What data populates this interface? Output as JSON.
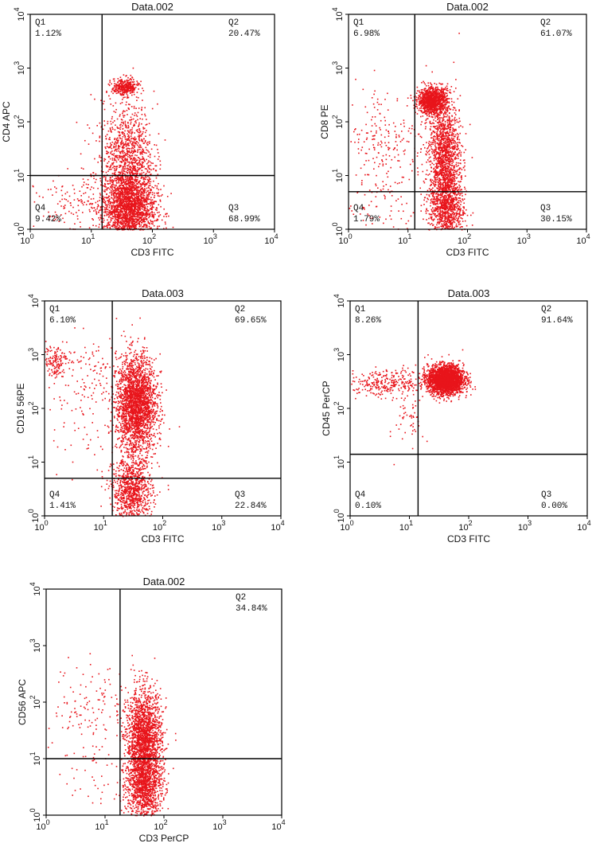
{
  "chart_data": [
    {
      "type": "scatter",
      "title": "Data.002",
      "xlabel": "CD3 FITC",
      "ylabel": "CD4 APC",
      "xscale": "log",
      "yscale": "log",
      "xlim": [
        1,
        10000
      ],
      "ylim": [
        1,
        10000
      ],
      "ticks": [
        {
          "base": "10",
          "exp": "0"
        },
        {
          "base": "10",
          "exp": "1"
        },
        {
          "base": "10",
          "exp": "2"
        },
        {
          "base": "10",
          "exp": "3"
        },
        {
          "base": "10",
          "exp": "4"
        }
      ],
      "gate": {
        "x": 15,
        "y": 10
      },
      "quadrants": [
        {
          "name": "Q1",
          "value": "1.12%",
          "pos": "top-left"
        },
        {
          "name": "Q2",
          "value": "20.47%",
          "pos": "top-right"
        },
        {
          "name": "Q3",
          "value": "68.99%",
          "pos": "bottom-right"
        },
        {
          "name": "Q4",
          "value": "9.42%",
          "pos": "bottom-left"
        }
      ],
      "clusters": [
        {
          "x": 40,
          "y": 2.5,
          "sx": 0.22,
          "sy": 0.35,
          "n": 2200
        },
        {
          "x": 40,
          "y": 25,
          "sx": 0.2,
          "sy": 0.45,
          "n": 900
        },
        {
          "x": 35,
          "y": 450,
          "sx": 0.11,
          "sy": 0.08,
          "n": 350
        },
        {
          "x": 6,
          "y": 2.5,
          "sx": 0.35,
          "sy": 0.3,
          "n": 160
        },
        {
          "x": 20,
          "y": 30,
          "sx": 0.35,
          "sy": 0.6,
          "n": 60
        }
      ],
      "color": "#e8141b"
    },
    {
      "type": "scatter",
      "title": "Data.002",
      "xlabel": "CD3 FITC",
      "ylabel": "CD8 PE",
      "xscale": "log",
      "yscale": "log",
      "xlim": [
        1,
        10000
      ],
      "ylim": [
        1,
        10000
      ],
      "ticks": [
        {
          "base": "10",
          "exp": "0"
        },
        {
          "base": "10",
          "exp": "1"
        },
        {
          "base": "10",
          "exp": "2"
        },
        {
          "base": "10",
          "exp": "3"
        },
        {
          "base": "10",
          "exp": "4"
        }
      ],
      "gate": {
        "x": 13,
        "y": 5
      },
      "quadrants": [
        {
          "name": "Q1",
          "value": "6.98%",
          "pos": "top-left"
        },
        {
          "name": "Q2",
          "value": "61.07%",
          "pos": "top-right"
        },
        {
          "name": "Q3",
          "value": "30.15%",
          "pos": "bottom-right"
        },
        {
          "name": "Q4",
          "value": "1.79%",
          "pos": "bottom-left"
        }
      ],
      "clusters": [
        {
          "x": 25,
          "y": 250,
          "sx": 0.12,
          "sy": 0.12,
          "n": 1100
        },
        {
          "x": 40,
          "y": 20,
          "sx": 0.13,
          "sy": 0.55,
          "n": 1500
        },
        {
          "x": 45,
          "y": 2.5,
          "sx": 0.15,
          "sy": 0.3,
          "n": 700
        },
        {
          "x": 4,
          "y": 40,
          "sx": 0.35,
          "sy": 0.55,
          "n": 230
        },
        {
          "x": 4,
          "y": 2.5,
          "sx": 0.35,
          "sy": 0.25,
          "n": 60
        }
      ],
      "color": "#e8141b"
    },
    {
      "type": "scatter",
      "title": "Data.003",
      "xlabel": "CD3 FITC",
      "ylabel": "CD16 56PE",
      "xscale": "log",
      "yscale": "log",
      "xlim": [
        1,
        10000
      ],
      "ylim": [
        1,
        10000
      ],
      "ticks": [
        {
          "base": "10",
          "exp": "0"
        },
        {
          "base": "10",
          "exp": "1"
        },
        {
          "base": "10",
          "exp": "2"
        },
        {
          "base": "10",
          "exp": "3"
        },
        {
          "base": "10",
          "exp": "4"
        }
      ],
      "gate": {
        "x": 14,
        "y": 5
      },
      "quadrants": [
        {
          "name": "Q1",
          "value": "6.10%",
          "pos": "top-left"
        },
        {
          "name": "Q2",
          "value": "69.65%",
          "pos": "top-right"
        },
        {
          "name": "Q3",
          "value": "22.84%",
          "pos": "bottom-right"
        },
        {
          "name": "Q4",
          "value": "1.41%",
          "pos": "bottom-left"
        }
      ],
      "clusters": [
        {
          "x": 35,
          "y": 120,
          "sx": 0.17,
          "sy": 0.45,
          "n": 2400
        },
        {
          "x": 30,
          "y": 3,
          "sx": 0.17,
          "sy": 0.3,
          "n": 900
        },
        {
          "x": 1.4,
          "y": 800,
          "sx": 0.12,
          "sy": 0.15,
          "n": 150
        },
        {
          "x": 5,
          "y": 400,
          "sx": 0.3,
          "sy": 0.4,
          "n": 120
        },
        {
          "x": 6,
          "y": 30,
          "sx": 0.4,
          "sy": 0.6,
          "n": 40
        }
      ],
      "color": "#e8141b"
    },
    {
      "type": "scatter",
      "title": "Data.003",
      "xlabel": "CD3 FITC",
      "ylabel": "CD45 PerCP",
      "xscale": "log",
      "yscale": "log",
      "xlim": [
        1,
        10000
      ],
      "ylim": [
        1,
        10000
      ],
      "ticks": [
        {
          "base": "10",
          "exp": "0"
        },
        {
          "base": "10",
          "exp": "1"
        },
        {
          "base": "10",
          "exp": "2"
        },
        {
          "base": "10",
          "exp": "3"
        },
        {
          "base": "10",
          "exp": "4"
        }
      ],
      "gate": {
        "x": 14,
        "y": 14
      },
      "quadrants": [
        {
          "name": "Q1",
          "value": "8.26%",
          "pos": "top-left"
        },
        {
          "name": "Q2",
          "value": "91.64%",
          "pos": "top-right"
        },
        {
          "name": "Q3",
          "value": "0.00%",
          "pos": "bottom-right"
        },
        {
          "name": "Q4",
          "value": "0.10%",
          "pos": "bottom-left"
        }
      ],
      "clusters": [
        {
          "x": 40,
          "y": 350,
          "sx": 0.15,
          "sy": 0.13,
          "n": 2600
        },
        {
          "x": 4,
          "y": 300,
          "sx": 0.35,
          "sy": 0.12,
          "n": 300
        },
        {
          "x": 10,
          "y": 80,
          "sx": 0.12,
          "sy": 0.35,
          "n": 60
        }
      ],
      "color": "#e8141b"
    },
    {
      "type": "scatter",
      "title": "Data.002",
      "xlabel": "CD3 PerCP",
      "ylabel": "CD56 APC",
      "xscale": "log",
      "yscale": "log",
      "xlim": [
        1,
        10000
      ],
      "ylim": [
        1,
        10000
      ],
      "ticks": [
        {
          "base": "10",
          "exp": "0"
        },
        {
          "base": "10",
          "exp": "1"
        },
        {
          "base": "10",
          "exp": "2"
        },
        {
          "base": "10",
          "exp": "3"
        },
        {
          "base": "10",
          "exp": "4"
        }
      ],
      "gate": {
        "x": 18,
        "y": 10
      },
      "quadrants": [
        {
          "name": "Q2",
          "value": "34.84%",
          "pos": "top-right"
        }
      ],
      "clusters": [
        {
          "x": 45,
          "y": 20,
          "sx": 0.15,
          "sy": 0.45,
          "n": 2000
        },
        {
          "x": 45,
          "y": 3,
          "sx": 0.15,
          "sy": 0.3,
          "n": 900
        },
        {
          "x": 6,
          "y": 100,
          "sx": 0.35,
          "sy": 0.35,
          "n": 120
        },
        {
          "x": 8,
          "y": 8,
          "sx": 0.35,
          "sy": 0.45,
          "n": 60
        }
      ],
      "color": "#e8141b"
    }
  ]
}
